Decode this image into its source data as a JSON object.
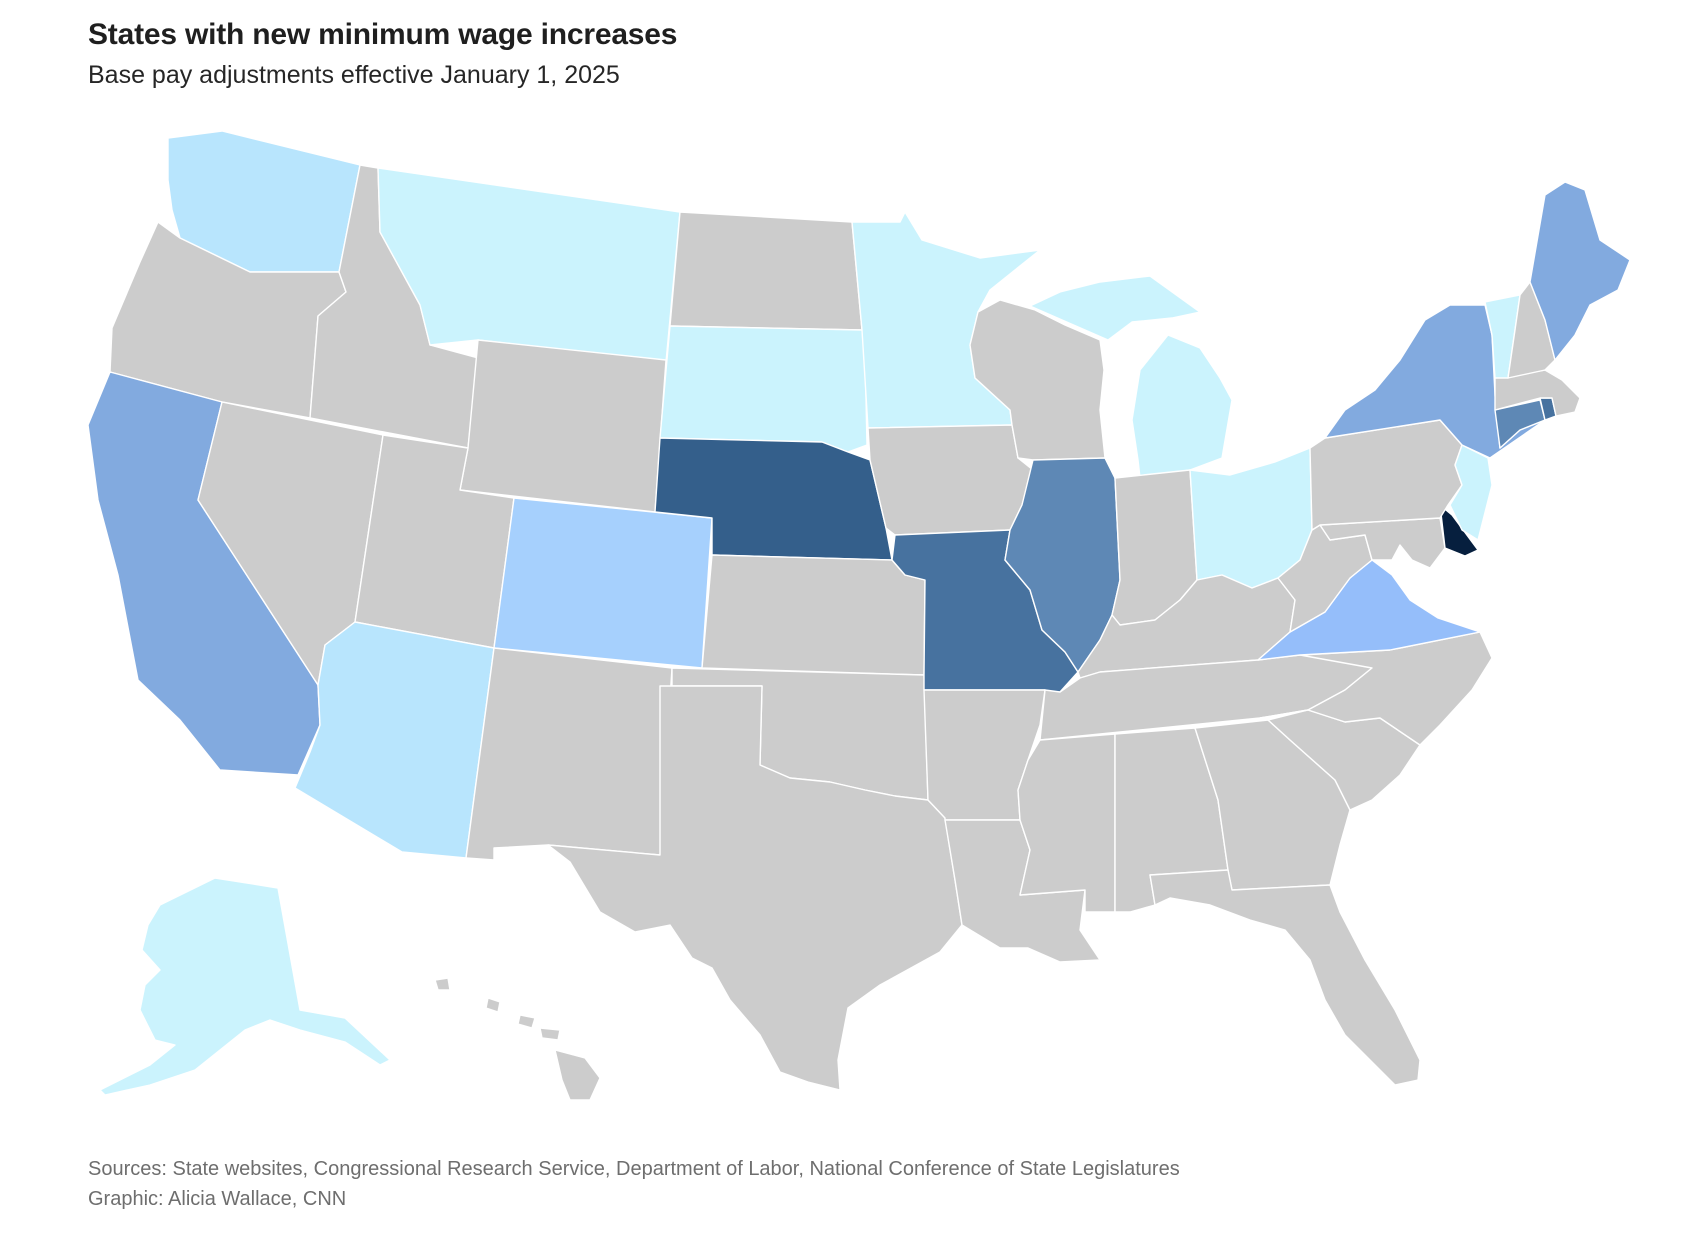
{
  "header": {
    "title": "States with new minimum wage increases",
    "subtitle": "Base pay adjustments effective January 1, 2025"
  },
  "footer": {
    "sources": "Sources: State websites, Congressional Research Service, Department of Labor, National Conference of State Legislatures",
    "credit": "Graphic: Alicia Wallace, CNN"
  },
  "map": {
    "type": "choropleth",
    "region": "United States",
    "colors": {
      "no_increase": "#cccccc",
      "tier_1": "#cbf3fd",
      "tier_2": "#b8e5fd",
      "tier_3": "#a6d0fd",
      "tier_4": "#95befa",
      "tier_5": "#82aadf",
      "tier_6": "#5e88b5",
      "tier_7": "#47729f",
      "tier_8": "#345f8b",
      "tier_9": "#061f3e"
    },
    "states": [
      {
        "code": "WA",
        "tier": "tier_2"
      },
      {
        "code": "OR",
        "tier": "no_increase"
      },
      {
        "code": "CA",
        "tier": "tier_5"
      },
      {
        "code": "ID",
        "tier": "no_increase"
      },
      {
        "code": "NV",
        "tier": "no_increase"
      },
      {
        "code": "MT",
        "tier": "tier_1"
      },
      {
        "code": "WY",
        "tier": "no_increase"
      },
      {
        "code": "UT",
        "tier": "no_increase"
      },
      {
        "code": "AZ",
        "tier": "tier_2"
      },
      {
        "code": "CO",
        "tier": "tier_3"
      },
      {
        "code": "NM",
        "tier": "no_increase"
      },
      {
        "code": "ND",
        "tier": "no_increase"
      },
      {
        "code": "SD",
        "tier": "tier_1"
      },
      {
        "code": "NE",
        "tier": "tier_8"
      },
      {
        "code": "KS",
        "tier": "no_increase"
      },
      {
        "code": "OK",
        "tier": "no_increase"
      },
      {
        "code": "TX",
        "tier": "no_increase"
      },
      {
        "code": "MN",
        "tier": "tier_1"
      },
      {
        "code": "IA",
        "tier": "no_increase"
      },
      {
        "code": "MO",
        "tier": "tier_7"
      },
      {
        "code": "AR",
        "tier": "no_increase"
      },
      {
        "code": "LA",
        "tier": "no_increase"
      },
      {
        "code": "WI",
        "tier": "no_increase"
      },
      {
        "code": "IL",
        "tier": "tier_6"
      },
      {
        "code": "MI",
        "tier": "tier_1"
      },
      {
        "code": "IN",
        "tier": "no_increase"
      },
      {
        "code": "OH",
        "tier": "tier_1"
      },
      {
        "code": "KY",
        "tier": "no_increase"
      },
      {
        "code": "TN",
        "tier": "no_increase"
      },
      {
        "code": "MS",
        "tier": "no_increase"
      },
      {
        "code": "AL",
        "tier": "no_increase"
      },
      {
        "code": "GA",
        "tier": "no_increase"
      },
      {
        "code": "FL",
        "tier": "no_increase"
      },
      {
        "code": "SC",
        "tier": "no_increase"
      },
      {
        "code": "NC",
        "tier": "no_increase"
      },
      {
        "code": "VA",
        "tier": "tier_4"
      },
      {
        "code": "WV",
        "tier": "no_increase"
      },
      {
        "code": "MD",
        "tier": "no_increase"
      },
      {
        "code": "DE",
        "tier": "tier_9"
      },
      {
        "code": "PA",
        "tier": "no_increase"
      },
      {
        "code": "NJ",
        "tier": "tier_1"
      },
      {
        "code": "NY",
        "tier": "tier_5"
      },
      {
        "code": "CT",
        "tier": "tier_6"
      },
      {
        "code": "RI",
        "tier": "tier_7"
      },
      {
        "code": "MA",
        "tier": "no_increase"
      },
      {
        "code": "VT",
        "tier": "tier_1"
      },
      {
        "code": "NH",
        "tier": "no_increase"
      },
      {
        "code": "ME",
        "tier": "tier_5"
      },
      {
        "code": "AK",
        "tier": "tier_1"
      },
      {
        "code": "HI",
        "tier": "no_increase"
      }
    ]
  }
}
